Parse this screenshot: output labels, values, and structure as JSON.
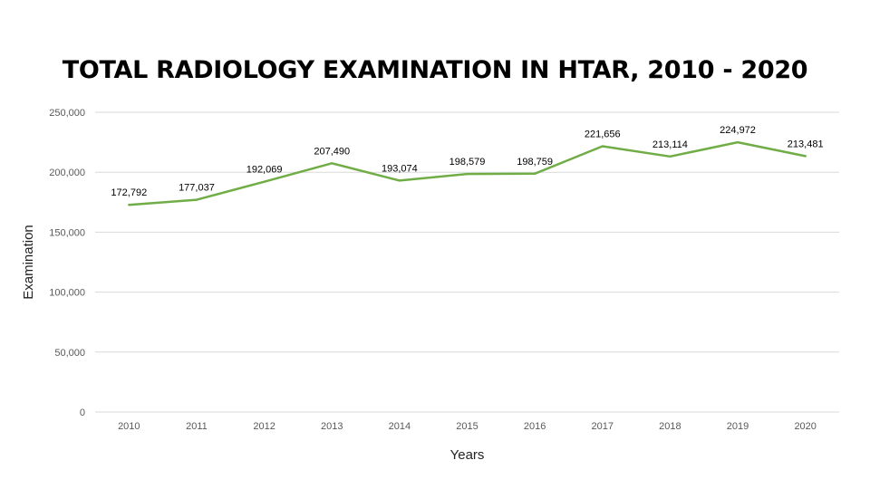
{
  "chart_data": {
    "type": "line",
    "title": "TOTAL RADIOLOGY EXAMINATION IN HTAR, 2010 - 2020",
    "xlabel": "Years",
    "ylabel": "Examination",
    "categories": [
      "2010",
      "2011",
      "2012",
      "2013",
      "2014",
      "2015",
      "2016",
      "2017",
      "2018",
      "2019",
      "2020"
    ],
    "series": [
      {
        "values": [
          172792,
          177037,
          192069,
          207490,
          193074,
          198579,
          198759,
          221656,
          213114,
          224972,
          213481
        ],
        "labels": [
          "172,792",
          "177,037",
          "192,069",
          "207,490",
          "193,074",
          "198,579",
          "198,759",
          "221,656",
          "213,114",
          "224,972",
          "213,481"
        ],
        "color": "#70AD47"
      }
    ],
    "ylim": [
      0,
      250000
    ],
    "yticks": [
      0,
      50000,
      100000,
      150000,
      200000,
      250000
    ],
    "ytick_labels": [
      "0",
      "50,000",
      "100,000",
      "150,000",
      "200,000",
      "250,000"
    ],
    "grid": true,
    "legend": "none"
  }
}
